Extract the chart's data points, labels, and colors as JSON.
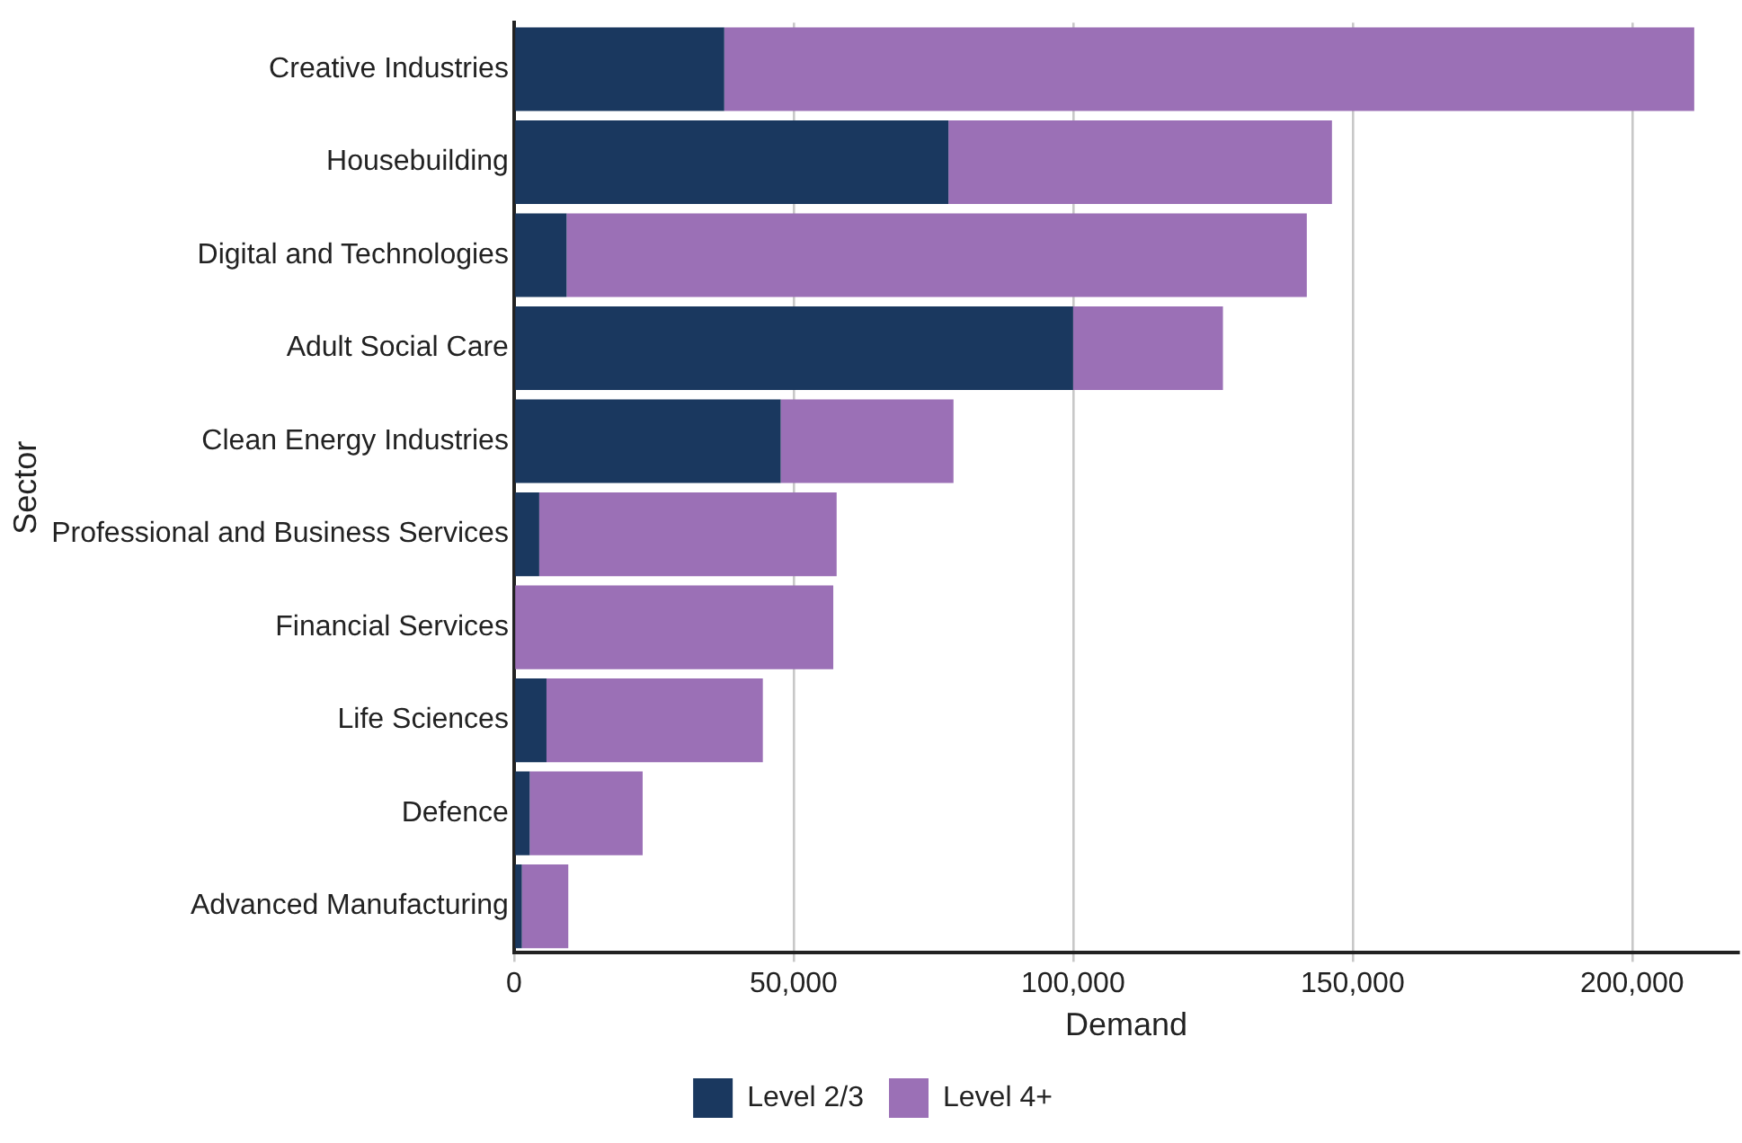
{
  "chart_data": {
    "type": "bar",
    "orientation": "horizontal",
    "stacked": true,
    "xlabel": "Demand",
    "ylabel": "Sector",
    "categories": [
      "Creative Industries",
      "Housebuilding",
      "Digital and Technologies",
      "Adult Social Care",
      "Clean Energy Industries",
      "Professional and Business Services",
      "Financial Services",
      "Life Sciences",
      "Defence",
      "Advanced Manufacturing"
    ],
    "series": [
      {
        "name": "Level 2/3",
        "color": "#1a385f",
        "values": [
          37600,
          77700,
          9400,
          100000,
          47700,
          4500,
          0,
          5800,
          2800,
          1400
        ]
      },
      {
        "name": "Level 4+",
        "color": "#9b70b6",
        "values": [
          173500,
          68600,
          132400,
          26800,
          30900,
          53200,
          57100,
          38700,
          20200,
          8300
        ]
      }
    ],
    "xlim": [
      0,
      219000
    ],
    "xticks": [
      {
        "value": 0,
        "label": "0"
      },
      {
        "value": 50000,
        "label": "50,000"
      },
      {
        "value": 100000,
        "label": "100,000"
      },
      {
        "value": 150000,
        "label": "150,000"
      },
      {
        "value": 200000,
        "label": "200,000"
      }
    ],
    "grid": "x",
    "legend": "bottom"
  }
}
